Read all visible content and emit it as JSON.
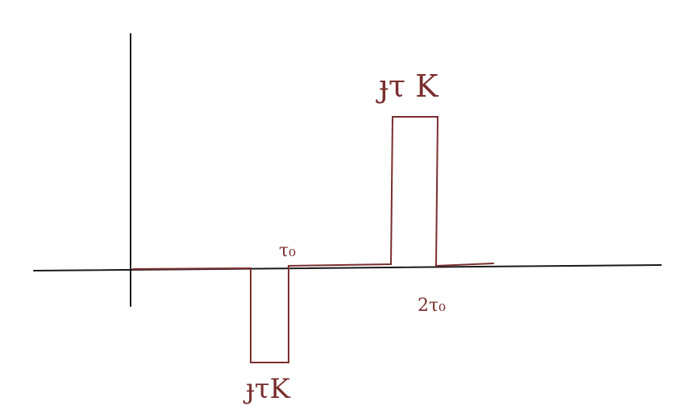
{
  "diagram": {
    "labels": {
      "top_pulse": "ɟτ K",
      "bottom_pulse": "ɟτK",
      "t0_mark": "τ₀",
      "two_t0_mark": "2τ₀"
    },
    "colors": {
      "axis": "#1a1a1a",
      "signal": "#7a2e2e"
    }
  }
}
